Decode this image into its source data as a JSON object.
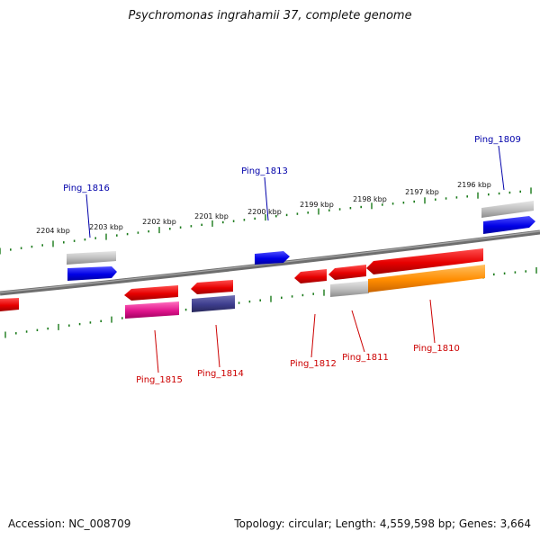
{
  "title": "Psychromonas ingrahamii 37, complete genome",
  "footer": {
    "accession": "Accession: NC_008709",
    "summary": "Topology: circular; Length: 4,559,598 bp; Genes: 3,664"
  },
  "colors": {
    "backbone": "#7a7a7a",
    "ticks": "#1a7a1a",
    "forward_label": "#0000aa",
    "reverse_label": "#cc0000",
    "red": "#e60000",
    "blue": "#0000e6",
    "grey": "#b4b4b4",
    "magenta": "#e0148c",
    "navy": "#3c3c8c",
    "orange": "#ff8c00"
  },
  "scale_labels": [
    "2204 kbp",
    "2203 kbp",
    "2202 kbp",
    "2201 kbp",
    "2200 kbp",
    "2199 kbp",
    "2198 kbp",
    "2197 kbp",
    "2196 kbp"
  ],
  "gene_labels": {
    "forward": [
      "Ping_1816",
      "Ping_1813",
      "Ping_1809"
    ],
    "reverse": [
      "Ping_1815",
      "Ping_1814",
      "Ping_1812",
      "Ping_1811",
      "Ping_1810"
    ]
  }
}
